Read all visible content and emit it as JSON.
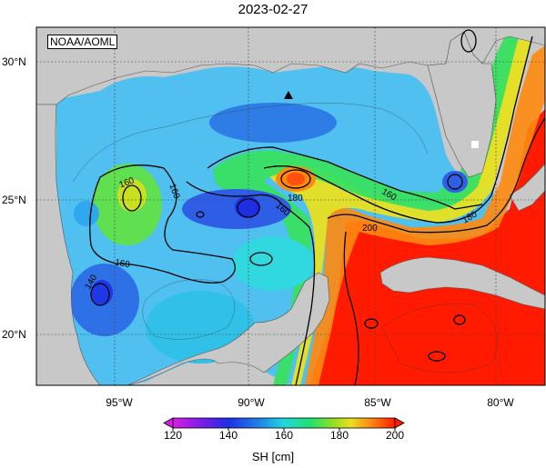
{
  "title": "2023-02-27",
  "credit": "NOAA/AOML",
  "lat_labels": [
    "30°N",
    "25°N",
    "20°N"
  ],
  "lon_labels": [
    "95°W",
    "90°W",
    "85°W",
    "80°W"
  ],
  "contour_labels": [
    "160",
    "160",
    "160",
    "140",
    "180",
    "160",
    "200",
    "180",
    "160"
  ],
  "colorbar": {
    "title": "SH [cm]",
    "ticks": [
      "120",
      "140",
      "160",
      "180",
      "200"
    ],
    "min": 120,
    "max": 200
  },
  "colors": {
    "land": "#c8c8c8",
    "low": "#1e38e6",
    "mid": "#20e0e0",
    "high": "#ff1a00"
  }
}
